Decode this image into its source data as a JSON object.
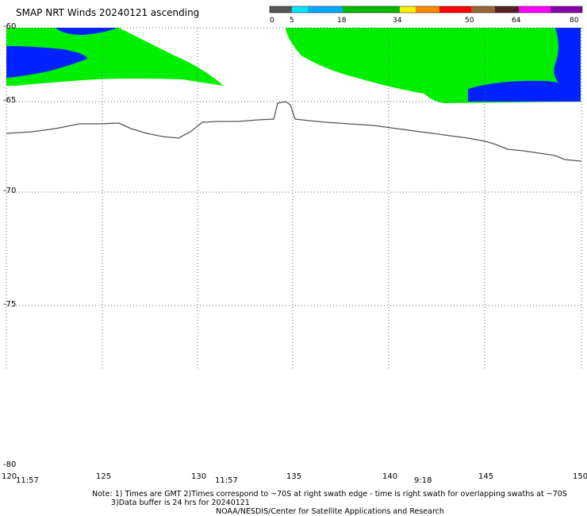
{
  "title": "SMAP NRT Winds 20240121 ascending",
  "colorbar": {
    "labels": [
      "0",
      "5",
      "18",
      "34",
      "50",
      "64",
      "80"
    ],
    "colors": [
      "#555555",
      "#00e5ff",
      "#0080ff",
      "#00cc00",
      "#ffee00",
      "#ff6600",
      "#ff0000",
      "#996633",
      "#660033",
      "#ff00ff",
      "#8800aa"
    ]
  },
  "lat_labels": [
    "-60",
    "-65",
    "-70",
    "-75",
    "-80"
  ],
  "lon_labels": [
    "120",
    "125",
    "130",
    "135",
    "140",
    "145",
    "150"
  ],
  "time_labels": [
    "11:57",
    "11:57",
    "9:18"
  ],
  "notes": {
    "line1": "Note: 1) Times are GMT 2)Times correspond to ~70S at right swath edge - time is right swath for overlapping swaths at ~70S",
    "line2": "3)Data buffer is 24 hrs for 20240121",
    "line3": "NOAA/NESDIS/Center for Satellite Applications and Research"
  },
  "swath_colors": {
    "green": "#00ee00",
    "blue": "#0022ff",
    "coast": "#555555"
  }
}
